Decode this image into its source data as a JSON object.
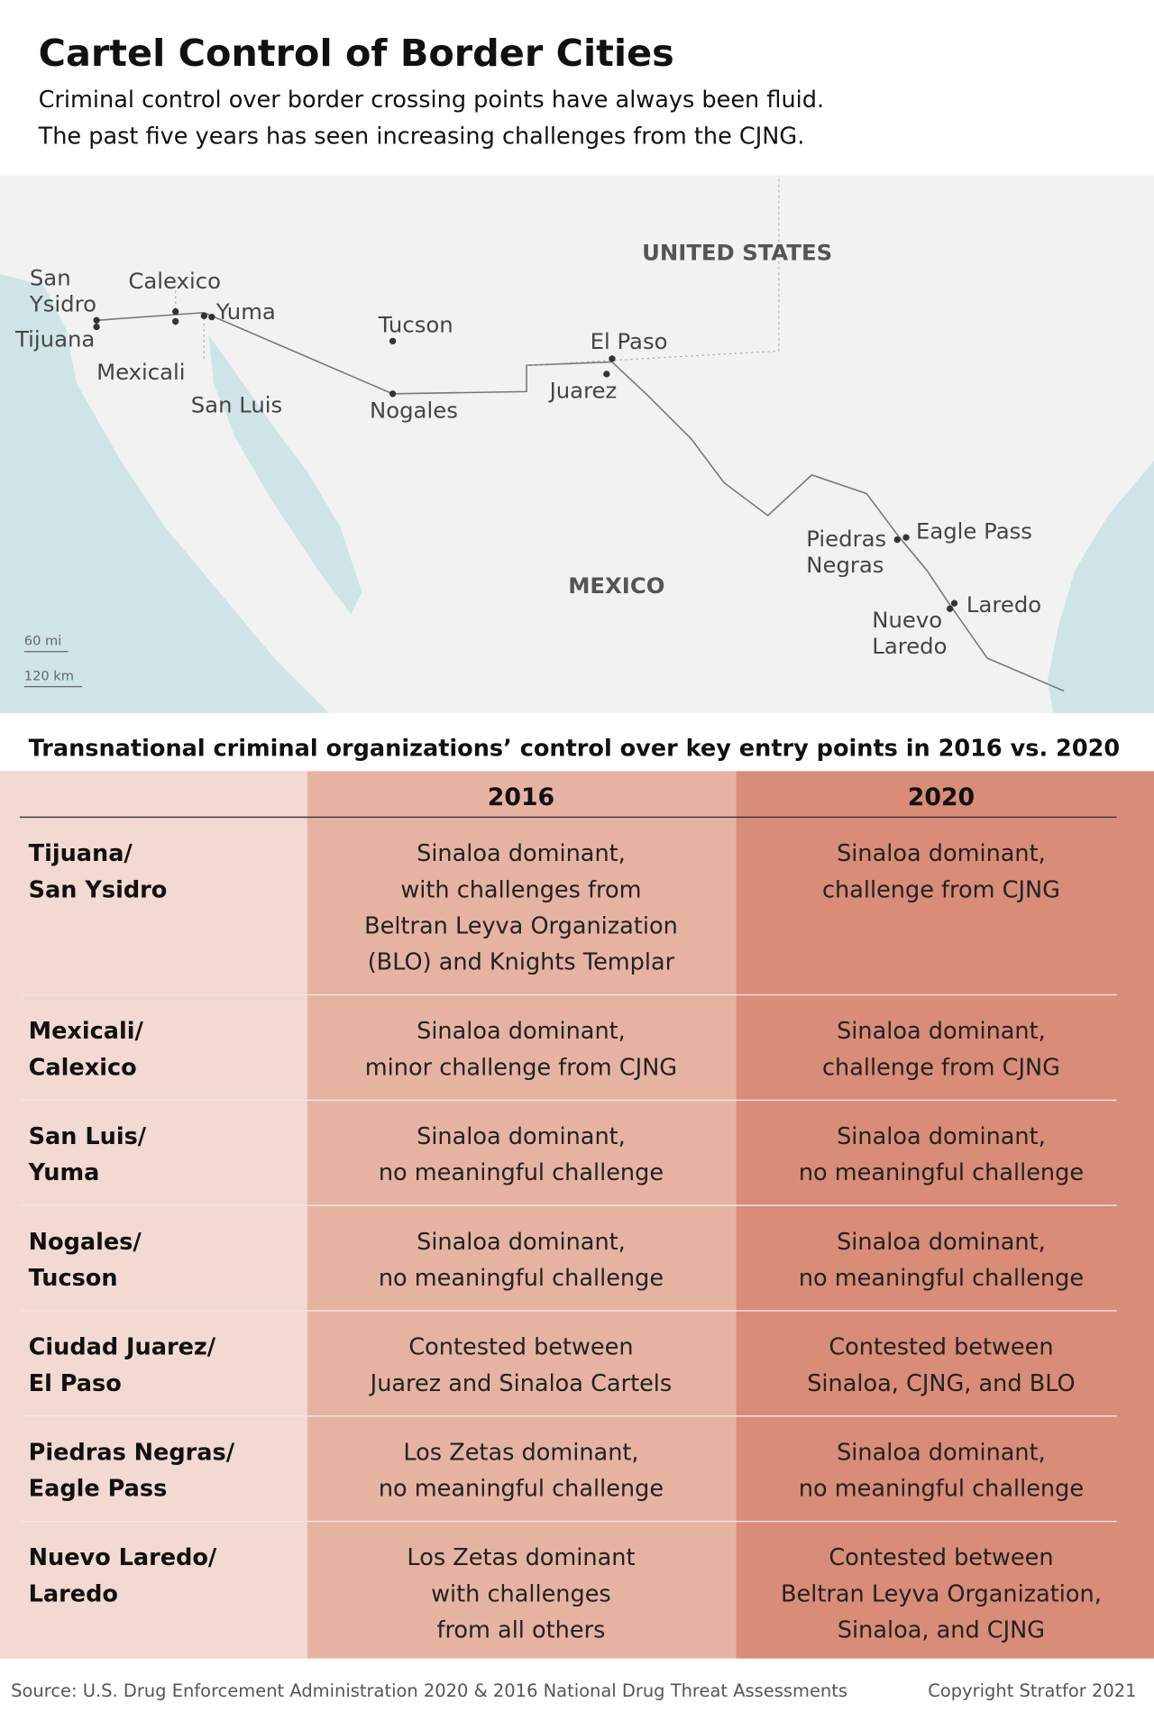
{
  "header": {
    "title": "Cartel Control of Border Cities",
    "subtitle": [
      "Criminal control over border crossing points have always been fluid.",
      "The past five years has seen increasing challenges from the CJNG."
    ]
  },
  "map": {
    "countries": [
      "UNITED STATES",
      "MEXICO"
    ],
    "cities": [
      [
        "San",
        "Ysidro"
      ],
      [
        "Tijuana"
      ],
      [
        "Calexico"
      ],
      [
        "Mexicali"
      ],
      [
        "Yuma"
      ],
      [
        "San Luis"
      ],
      [
        "Tucson"
      ],
      [
        "Nogales"
      ],
      [
        "El Paso"
      ],
      [
        "Juarez"
      ],
      [
        "Piedras",
        "Negras"
      ],
      [
        "Eagle Pass"
      ],
      [
        "Nuevo",
        "Laredo"
      ],
      [
        "Laredo"
      ]
    ],
    "scale": [
      "60 mi",
      "120 km"
    ]
  },
  "table": {
    "title": "Transnational criminal organizations’ control over key entry points in 2016 vs. 2020",
    "columns": [
      "2016",
      "2020"
    ],
    "rows": [
      [
        [
          "Tijuana/",
          "San Ysidro"
        ],
        [
          "Sinaloa dominant,",
          "with challenges from",
          "Beltran Leyva Organization",
          "(BLO) and Knights Templar"
        ],
        [
          "Sinaloa dominant,",
          "challenge from CJNG"
        ]
      ],
      [
        [
          "Mexicali/",
          "Calexico"
        ],
        [
          "Sinaloa dominant,",
          "minor challenge from CJNG"
        ],
        [
          "Sinaloa dominant,",
          "challenge from CJNG"
        ]
      ],
      [
        [
          "San Luis/",
          "Yuma"
        ],
        [
          "Sinaloa dominant,",
          "no meaningful challenge"
        ],
        [
          "Sinaloa dominant,",
          "no meaningful challenge"
        ]
      ],
      [
        [
          "Nogales/",
          "Tucson"
        ],
        [
          "Sinaloa dominant,",
          "no meaningful challenge"
        ],
        [
          "Sinaloa dominant,",
          "no meaningful challenge"
        ]
      ],
      [
        [
          "Ciudad Juarez/",
          "El Paso"
        ],
        [
          "Contested between",
          "Juarez and Sinaloa Cartels"
        ],
        [
          "Contested between",
          "Sinaloa, CJNG, and BLO"
        ]
      ],
      [
        [
          "Piedras Negras/",
          "Eagle Pass"
        ],
        [
          "Los Zetas dominant,",
          "no meaningful challenge"
        ],
        [
          "Sinaloa dominant,",
          "no meaningful challenge"
        ]
      ],
      [
        [
          "Nuevo Laredo/",
          "Laredo"
        ],
        [
          "Los Zetas dominant",
          "with challenges",
          "from all others"
        ],
        [
          "Contested between",
          "Beltran Leyva Organization,",
          "Sinaloa, and CJNG"
        ]
      ]
    ]
  },
  "footer": {
    "source": "Source: U.S. Drug Enforcement Administration 2020 & 2016 National Drug Threat Assessments",
    "copyright": "Copyright Stratfor 2021"
  }
}
